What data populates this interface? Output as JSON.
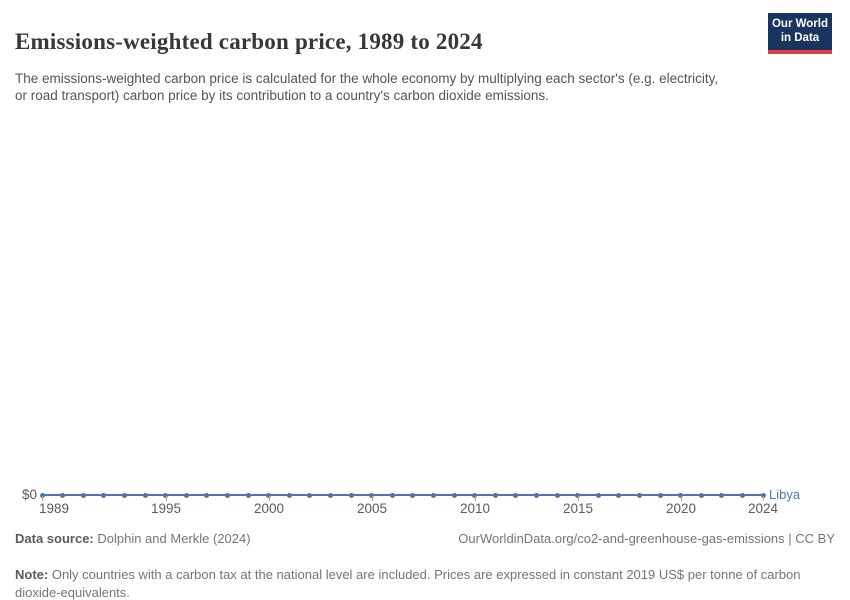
{
  "header": {
    "title": "Emissions-weighted carbon price, 1989 to 2024",
    "subtitle": "The emissions-weighted carbon price is calculated for the whole economy by multiplying each sector's (e.g. electricity, or road transport) carbon price by its contribution to a country's carbon dioxide emissions.",
    "logo_line1": "Our World",
    "logo_line2": "in Data"
  },
  "chart_data": {
    "type": "line",
    "title": "Emissions-weighted carbon price, 1989 to 2024",
    "xlabel": "",
    "ylabel": "",
    "y_axis_tick_label": "$0",
    "xlim": [
      1989,
      2024
    ],
    "ylim": [
      0,
      0
    ],
    "grid": false,
    "x_ticks": [
      1989,
      1995,
      2000,
      2005,
      2010,
      2015,
      2020,
      2024
    ],
    "entity_label": "Libya",
    "series": [
      {
        "name": "Libya",
        "color": "#5274ac",
        "x": [
          1989,
          1990,
          1991,
          1992,
          1993,
          1994,
          1995,
          1996,
          1997,
          1998,
          1999,
          2000,
          2001,
          2002,
          2003,
          2004,
          2005,
          2006,
          2007,
          2008,
          2009,
          2010,
          2011,
          2012,
          2013,
          2014,
          2015,
          2016,
          2017,
          2018,
          2019,
          2020,
          2021,
          2022,
          2023,
          2024
        ],
        "values": [
          0,
          0,
          0,
          0,
          0,
          0,
          0,
          0,
          0,
          0,
          0,
          0,
          0,
          0,
          0,
          0,
          0,
          0,
          0,
          0,
          0,
          0,
          0,
          0,
          0,
          0,
          0,
          0,
          0,
          0,
          0,
          0,
          0,
          0,
          0,
          0
        ]
      }
    ]
  },
  "footer": {
    "datasource_label": "Data source:",
    "datasource_value": " Dolphin and Merkle (2024)",
    "attribution": "OurWorldinData.org/co2-and-greenhouse-gas-emissions | CC BY",
    "note_label": "Note:",
    "note_text": " Only countries with a carbon tax at the national level are included. Prices are expressed in constant 2019 US$ per tonne of carbon dioxide-equivalents."
  },
  "colors": {
    "line": "#5274ac",
    "logo_navy": "#19345e",
    "logo_red": "#dc3e45",
    "title_text": "#383636",
    "axis_text": "#5b5b5b",
    "footer_text": "#757575"
  }
}
